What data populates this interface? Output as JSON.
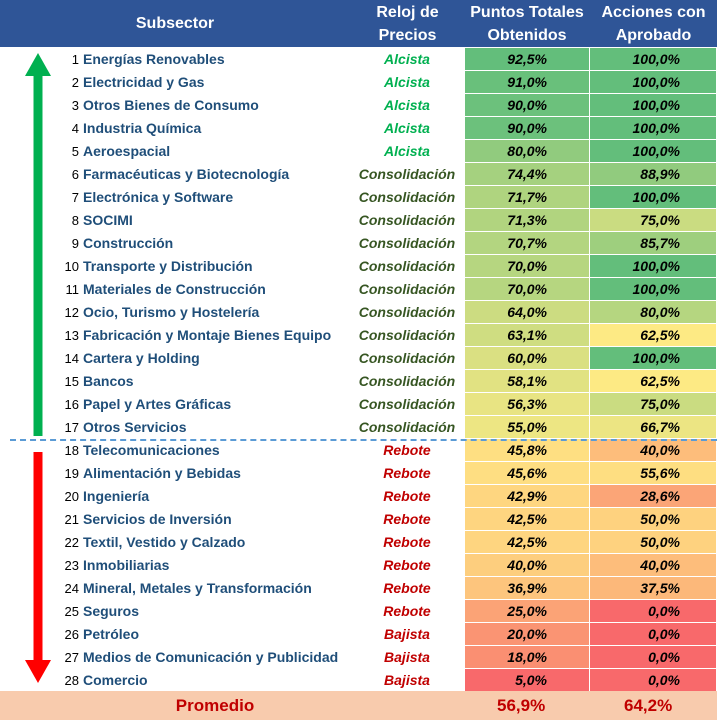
{
  "header": {
    "subsector": "Subsector",
    "reloj": "Reloj de\nPrecios",
    "puntos": "Puntos Totales\nObtenidos",
    "acciones": "Acciones con\nAprobado"
  },
  "colors": {
    "header_bg": "#2f5597",
    "alcista": "#00b050",
    "consolidacion": "#375623",
    "rebote": "#c00000",
    "bajista": "#c00000",
    "up_arrow": "#00b050",
    "down_arrow": "#ff0000"
  },
  "rows": [
    {
      "n": "1",
      "name": "Energías Renovables",
      "clock": "Alcista",
      "puntos": "92,5%",
      "acciones": "100,0%",
      "pv": 92.5,
      "av": 100.0
    },
    {
      "n": "2",
      "name": "Electricidad y Gas",
      "clock": "Alcista",
      "puntos": "91,0%",
      "acciones": "100,0%",
      "pv": 91.0,
      "av": 100.0
    },
    {
      "n": "3",
      "name": "Otros Bienes de Consumo",
      "clock": "Alcista",
      "puntos": "90,0%",
      "acciones": "100,0%",
      "pv": 90.0,
      "av": 100.0
    },
    {
      "n": "4",
      "name": "Industria Química",
      "clock": "Alcista",
      "puntos": "90,0%",
      "acciones": "100,0%",
      "pv": 90.0,
      "av": 100.0
    },
    {
      "n": "5",
      "name": "Aeroespacial",
      "clock": "Alcista",
      "puntos": "80,0%",
      "acciones": "100,0%",
      "pv": 80.0,
      "av": 100.0
    },
    {
      "n": "6",
      "name": "Farmacéuticas y Biotecnología",
      "clock": "Consolidación",
      "puntos": "74,4%",
      "acciones": "88,9%",
      "pv": 74.4,
      "av": 88.9
    },
    {
      "n": "7",
      "name": "Electrónica y Software",
      "clock": "Consolidación",
      "puntos": "71,7%",
      "acciones": "100,0%",
      "pv": 71.7,
      "av": 100.0
    },
    {
      "n": "8",
      "name": "SOCIMI",
      "clock": "Consolidación",
      "puntos": "71,3%",
      "acciones": "75,0%",
      "pv": 71.3,
      "av": 75.0
    },
    {
      "n": "9",
      "name": "Construcción",
      "clock": "Consolidación",
      "puntos": "70,7%",
      "acciones": "85,7%",
      "pv": 70.7,
      "av": 85.7
    },
    {
      "n": "10",
      "name": "Transporte y Distribución",
      "clock": "Consolidación",
      "puntos": "70,0%",
      "acciones": "100,0%",
      "pv": 70.0,
      "av": 100.0
    },
    {
      "n": "11",
      "name": "Materiales de Construcción",
      "clock": "Consolidación",
      "puntos": "70,0%",
      "acciones": "100,0%",
      "pv": 70.0,
      "av": 100.0
    },
    {
      "n": "12",
      "name": "Ocio, Turismo y Hostelería",
      "clock": "Consolidación",
      "puntos": "64,0%",
      "acciones": "80,0%",
      "pv": 64.0,
      "av": 80.0
    },
    {
      "n": "13",
      "name": "Fabricación y Montaje Bienes Equipo",
      "clock": "Consolidación",
      "puntos": "63,1%",
      "acciones": "62,5%",
      "pv": 63.1,
      "av": 62.5
    },
    {
      "n": "14",
      "name": "Cartera y Holding",
      "clock": "Consolidación",
      "puntos": "60,0%",
      "acciones": "100,0%",
      "pv": 60.0,
      "av": 100.0
    },
    {
      "n": "15",
      "name": "Bancos",
      "clock": "Consolidación",
      "puntos": "58,1%",
      "acciones": "62,5%",
      "pv": 58.1,
      "av": 62.5
    },
    {
      "n": "16",
      "name": "Papel y Artes Gráficas",
      "clock": "Consolidación",
      "puntos": "56,3%",
      "acciones": "75,0%",
      "pv": 56.3,
      "av": 75.0
    },
    {
      "n": "17",
      "name": "Otros Servicios",
      "clock": "Consolidación",
      "puntos": "55,0%",
      "acciones": "66,7%",
      "pv": 55.0,
      "av": 66.7
    },
    {
      "n": "18",
      "name": "Telecomunicaciones",
      "clock": "Rebote",
      "puntos": "45,8%",
      "acciones": "40,0%",
      "pv": 45.8,
      "av": 40.0
    },
    {
      "n": "19",
      "name": "Alimentación y Bebidas",
      "clock": "Rebote",
      "puntos": "45,6%",
      "acciones": "55,6%",
      "pv": 45.6,
      "av": 55.6
    },
    {
      "n": "20",
      "name": "Ingeniería",
      "clock": "Rebote",
      "puntos": "42,9%",
      "acciones": "28,6%",
      "pv": 42.9,
      "av": 28.6
    },
    {
      "n": "21",
      "name": "Servicios de Inversión",
      "clock": "Rebote",
      "puntos": "42,5%",
      "acciones": "50,0%",
      "pv": 42.5,
      "av": 50.0
    },
    {
      "n": "22",
      "name": "Textil, Vestido y Calzado",
      "clock": "Rebote",
      "puntos": "42,5%",
      "acciones": "50,0%",
      "pv": 42.5,
      "av": 50.0
    },
    {
      "n": "23",
      "name": "Inmobiliarias",
      "clock": "Rebote",
      "puntos": "40,0%",
      "acciones": "40,0%",
      "pv": 40.0,
      "av": 40.0
    },
    {
      "n": "24",
      "name": "Mineral, Metales y Transformación",
      "clock": "Rebote",
      "puntos": "36,9%",
      "acciones": "37,5%",
      "pv": 36.9,
      "av": 37.5
    },
    {
      "n": "25",
      "name": "Seguros",
      "clock": "Rebote",
      "puntos": "25,0%",
      "acciones": "0,0%",
      "pv": 25.0,
      "av": 0.0
    },
    {
      "n": "26",
      "name": "Petróleo",
      "clock": "Bajista",
      "puntos": "20,0%",
      "acciones": "0,0%",
      "pv": 20.0,
      "av": 0.0
    },
    {
      "n": "27",
      "name": "Medios de Comunicación y Publicidad",
      "clock": "Bajista",
      "puntos": "18,0%",
      "acciones": "0,0%",
      "pv": 18.0,
      "av": 0.0
    },
    {
      "n": "28",
      "name": "Comercio",
      "clock": "Bajista",
      "puntos": "5,0%",
      "acciones": "0,0%",
      "pv": 5.0,
      "av": 0.0
    }
  ],
  "average": {
    "label": "Promedio",
    "puntos": "56,9%",
    "acciones": "64,2%"
  }
}
